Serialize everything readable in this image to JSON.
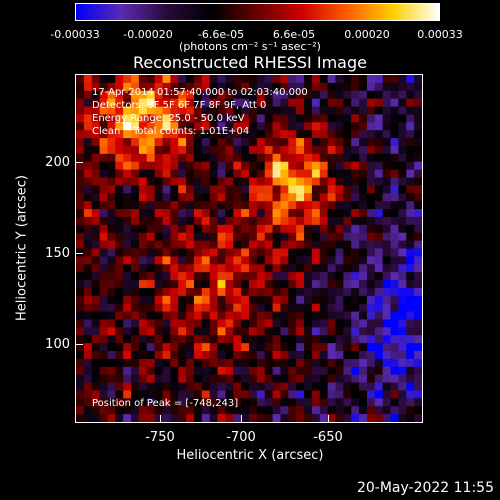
{
  "colorbar": {
    "ticks": [
      "-0.00033",
      "-0.00020",
      "-6.6e-05",
      "6.6e-05",
      "0.00020",
      "0.00033"
    ],
    "tick_fractions": [
      0.0,
      0.2,
      0.4,
      0.6,
      0.8,
      1.0
    ],
    "units": "(photons cm⁻² s⁻¹ asec⁻²)",
    "colors": [
      "#0000ff",
      "#5a2bb0",
      "#2a0a3a",
      "#000000",
      "#6a0000",
      "#d00000",
      "#ff6000",
      "#ffd000",
      "#ffffff"
    ]
  },
  "title": "Reconstructed RHESSI Image",
  "info": {
    "time": "17-Apr-2014 01:57:40.000 to 02:03:40.000",
    "detectors": "Detectors: 3F 5F 6F 7F 8F 9F, Att 0",
    "energy": "Energy Range: 25.0 - 50.0 keV",
    "clean": "Clean    Total counts: 1.01E+04",
    "peak": "Position of Peak = [-748,243]"
  },
  "axes": {
    "xlabel": "Heliocentric X (arcsec)",
    "ylabel": "Heliocentric Y (arcsec)",
    "xticks": [
      "-750",
      "-700",
      "-650"
    ],
    "yticks": [
      "200",
      "150",
      "100"
    ]
  },
  "footer": {
    "date": "20-May-2022 11:55"
  }
}
